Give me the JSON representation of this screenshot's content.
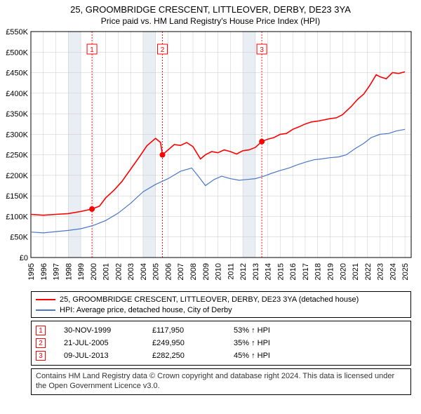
{
  "title_line1": "25, GROOMBRIDGE CRESCENT, LITTLEOVER, DERBY, DE23 3YA",
  "title_line2": "Price paid vs. HM Land Registry's House Price Index (HPI)",
  "chart": {
    "type": "line",
    "background_color": "#ffffff",
    "plot_bg_color": "#ffffff",
    "grid_color": "#c8c8c8",
    "grid_width": 0.5,
    "border_color": "#000000",
    "x_years": [
      1995,
      1996,
      1997,
      1998,
      1999,
      2000,
      2001,
      2002,
      2003,
      2004,
      2005,
      2006,
      2007,
      2008,
      2009,
      2010,
      2011,
      2012,
      2013,
      2014,
      2015,
      2016,
      2017,
      2018,
      2019,
      2020,
      2021,
      2022,
      2023,
      2024,
      2025
    ],
    "xlim": [
      1995,
      2025.5
    ],
    "ylim": [
      0,
      550000
    ],
    "ytick_step": 50000,
    "ytick_labels": [
      "£0",
      "£50K",
      "£100K",
      "£150K",
      "£200K",
      "£250K",
      "£300K",
      "£350K",
      "£400K",
      "£450K",
      "£500K",
      "£550K"
    ],
    "shaded_bands": [
      {
        "from": 1998,
        "to": 1999,
        "color": "#e9eef5"
      },
      {
        "from": 2004,
        "to": 2005,
        "color": "#e9eef5"
      },
      {
        "from": 2012,
        "to": 2013,
        "color": "#e9eef5"
      }
    ],
    "series": [
      {
        "name": "25, GROOMBRIDGE CRESCENT, LITTLEOVER, DERBY, DE23 3YA (detached house)",
        "color": "#ff0000",
        "width": 1.6,
        "data": [
          [
            1995,
            105000
          ],
          [
            1996,
            103000
          ],
          [
            1997,
            105000
          ],
          [
            1998,
            107000
          ],
          [
            1999,
            112000
          ],
          [
            1999.9,
            117950
          ],
          [
            2000.5,
            125000
          ],
          [
            2001,
            145000
          ],
          [
            2001.7,
            165000
          ],
          [
            2002.3,
            185000
          ],
          [
            2003,
            215000
          ],
          [
            2003.7,
            245000
          ],
          [
            2004.3,
            272000
          ],
          [
            2005,
            290000
          ],
          [
            2005.4,
            280000
          ],
          [
            2005.55,
            249950
          ],
          [
            2006,
            262000
          ],
          [
            2006.5,
            275000
          ],
          [
            2007,
            273000
          ],
          [
            2007.5,
            280000
          ],
          [
            2008,
            270000
          ],
          [
            2008.6,
            240000
          ],
          [
            2009,
            250000
          ],
          [
            2009.5,
            258000
          ],
          [
            2010,
            255000
          ],
          [
            2010.5,
            262000
          ],
          [
            2011,
            258000
          ],
          [
            2011.5,
            252000
          ],
          [
            2012,
            260000
          ],
          [
            2012.5,
            262000
          ],
          [
            2013,
            268000
          ],
          [
            2013.52,
            282250
          ],
          [
            2014,
            288000
          ],
          [
            2014.5,
            292000
          ],
          [
            2015,
            300000
          ],
          [
            2015.5,
            302000
          ],
          [
            2016,
            312000
          ],
          [
            2016.5,
            318000
          ],
          [
            2017,
            325000
          ],
          [
            2017.5,
            330000
          ],
          [
            2018,
            332000
          ],
          [
            2018.5,
            335000
          ],
          [
            2019,
            338000
          ],
          [
            2019.5,
            340000
          ],
          [
            2020,
            348000
          ],
          [
            2020.7,
            368000
          ],
          [
            2021.2,
            385000
          ],
          [
            2021.7,
            398000
          ],
          [
            2022.2,
            420000
          ],
          [
            2022.7,
            445000
          ],
          [
            2023,
            440000
          ],
          [
            2023.5,
            435000
          ],
          [
            2024,
            450000
          ],
          [
            2024.5,
            448000
          ],
          [
            2025,
            452000
          ]
        ]
      },
      {
        "name": "HPI: Average price, detached house, City of Derby",
        "color": "#4a76c7",
        "width": 1.2,
        "data": [
          [
            1995,
            62000
          ],
          [
            1996,
            60000
          ],
          [
            1997,
            63000
          ],
          [
            1998,
            66000
          ],
          [
            1999,
            70000
          ],
          [
            2000,
            78000
          ],
          [
            2001,
            90000
          ],
          [
            2002,
            108000
          ],
          [
            2003,
            132000
          ],
          [
            2004,
            160000
          ],
          [
            2005,
            178000
          ],
          [
            2006,
            192000
          ],
          [
            2007,
            210000
          ],
          [
            2007.9,
            218000
          ],
          [
            2008.5,
            195000
          ],
          [
            2009,
            175000
          ],
          [
            2009.7,
            190000
          ],
          [
            2010.3,
            198000
          ],
          [
            2011,
            192000
          ],
          [
            2011.7,
            188000
          ],
          [
            2012.3,
            190000
          ],
          [
            2013,
            192000
          ],
          [
            2013.7,
            198000
          ],
          [
            2014.3,
            205000
          ],
          [
            2015,
            212000
          ],
          [
            2015.7,
            218000
          ],
          [
            2016.3,
            225000
          ],
          [
            2017,
            232000
          ],
          [
            2017.7,
            238000
          ],
          [
            2018.3,
            240000
          ],
          [
            2019,
            243000
          ],
          [
            2019.7,
            245000
          ],
          [
            2020.3,
            250000
          ],
          [
            2021,
            265000
          ],
          [
            2021.7,
            278000
          ],
          [
            2022.3,
            292000
          ],
          [
            2023,
            300000
          ],
          [
            2023.7,
            302000
          ],
          [
            2024.3,
            308000
          ],
          [
            2025,
            312000
          ]
        ]
      }
    ],
    "markers": [
      {
        "x": 1999.9,
        "y": 117950,
        "color": "#ff0000"
      },
      {
        "x": 2005.55,
        "y": 249950,
        "color": "#ff0000"
      },
      {
        "x": 2013.52,
        "y": 282250,
        "color": "#ff0000"
      }
    ],
    "event_lines": [
      {
        "x": 1999.9,
        "label": "1",
        "color": "#ff0000"
      },
      {
        "x": 2005.55,
        "label": "2",
        "color": "#ff0000"
      },
      {
        "x": 2013.52,
        "label": "3",
        "color": "#ff0000"
      }
    ]
  },
  "legend": {
    "items": [
      {
        "label": "25, GROOMBRIDGE CRESCENT, LITTLEOVER, DERBY, DE23 3YA (detached house)",
        "color": "#ff0000"
      },
      {
        "label": "HPI: Average price, detached house, City of Derby",
        "color": "#4a76c7"
      }
    ]
  },
  "events": [
    {
      "n": "1",
      "date": "30-NOV-1999",
      "price": "£117,950",
      "delta": "53% ↑ HPI"
    },
    {
      "n": "2",
      "date": "21-JUL-2005",
      "price": "£249,950",
      "delta": "35% ↑ HPI"
    },
    {
      "n": "3",
      "date": "09-JUL-2013",
      "price": "£282,250",
      "delta": "45% ↑ HPI"
    }
  ],
  "attribution": "Contains HM Land Registry data © Crown copyright and database right 2024. This data is licensed under the Open Government Licence v3.0."
}
